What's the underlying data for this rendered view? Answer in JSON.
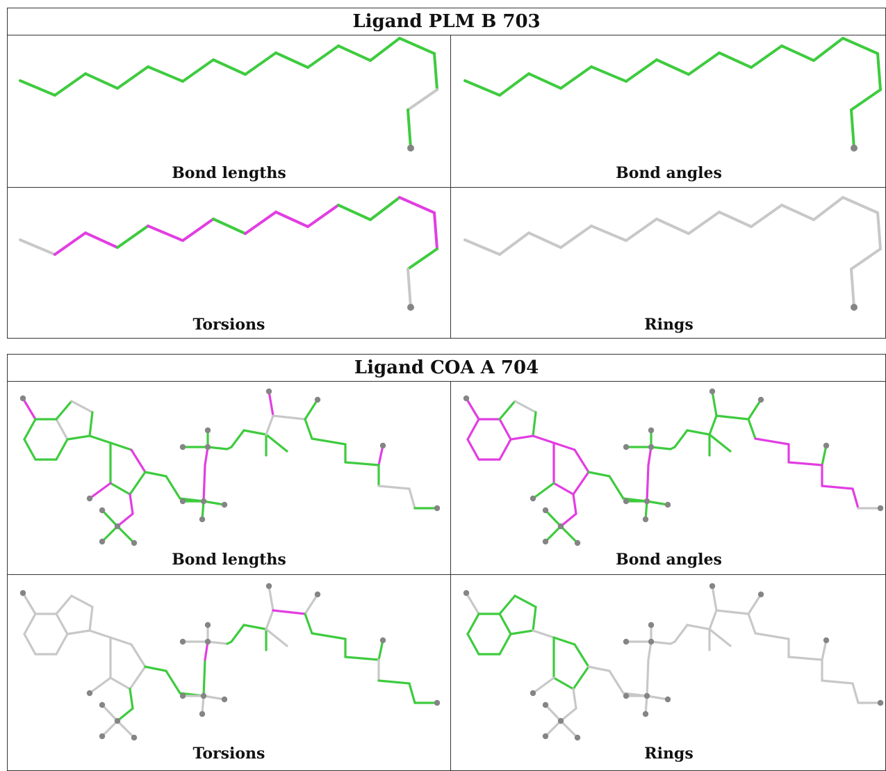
{
  "colors": {
    "ok": "#3ecb3e",
    "outlier": "#e23de2",
    "neutral": "#c8c8c8",
    "atom": "#858585"
  },
  "ligands": [
    {
      "title": "Ligand PLM B 703",
      "panels": [
        {
          "caption": "Bond lengths"
        },
        {
          "caption": "Bond angles"
        },
        {
          "caption": "Torsions"
        },
        {
          "caption": "Rings"
        }
      ]
    },
    {
      "title": "Ligand COA A 704",
      "panels": [
        {
          "caption": "Bond lengths"
        },
        {
          "caption": "Bond angles"
        },
        {
          "caption": "Torsions"
        },
        {
          "caption": "Rings"
        }
      ]
    }
  ]
}
